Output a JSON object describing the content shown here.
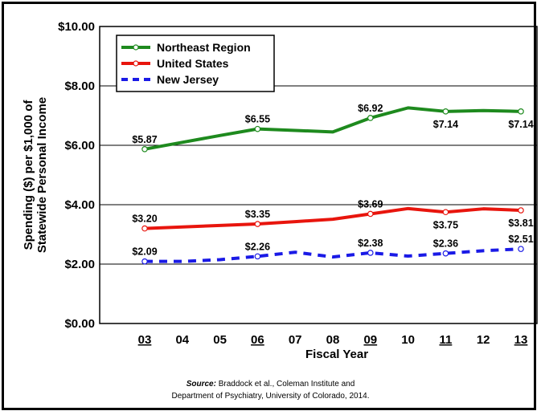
{
  "chart_data": {
    "type": "line",
    "xlabel": "Fiscal Year",
    "ylabel_line1": "Spending ($) per $1,000 of",
    "ylabel_line2": "Statewide Personal Income",
    "x": [
      "03",
      "04",
      "05",
      "06",
      "07",
      "08",
      "09",
      "10",
      "11",
      "12",
      "13"
    ],
    "underlined_ticks": [
      "03",
      "06",
      "09",
      "11",
      "13"
    ],
    "yticks": [
      "$0.00",
      "$2.00",
      "$4.00",
      "$6.00",
      "$8.00",
      "$10.00"
    ],
    "ylim": [
      0,
      10
    ],
    "grid": true,
    "legend_position": "top-left",
    "series": [
      {
        "name": "Northeast Region",
        "color": "#1e8a1e",
        "style": "solid",
        "values": [
          5.87,
          6.1,
          6.33,
          6.55,
          6.5,
          6.45,
          6.92,
          7.26,
          7.14,
          7.17,
          7.14
        ],
        "labels": {
          "0": "$5.87",
          "3": "$6.55",
          "6": "$6.92",
          "8": "$7.14",
          "10": "$7.14"
        }
      },
      {
        "name": "United States",
        "color": "#e8150d",
        "style": "solid",
        "values": [
          3.2,
          3.25,
          3.3,
          3.35,
          3.43,
          3.51,
          3.69,
          3.87,
          3.75,
          3.86,
          3.81
        ],
        "labels": {
          "0": "$3.20",
          "3": "$3.35",
          "6": "$3.69",
          "8": "$3.75",
          "10": "$3.81"
        }
      },
      {
        "name": "New Jersey",
        "color": "#1a1ae6",
        "style": "dashed",
        "values": [
          2.09,
          2.09,
          2.15,
          2.26,
          2.4,
          2.24,
          2.38,
          2.27,
          2.36,
          2.45,
          2.51
        ],
        "labels": {
          "0": "$2.09",
          "3": "$2.26",
          "6": "$2.38",
          "8": "$2.36",
          "10": "$2.51"
        }
      }
    ]
  },
  "source": {
    "label": "Source:",
    "line1": "Braddock et al., Coleman Institute and",
    "line2": "Department of Psychiatry, University of Colorado, 2014."
  }
}
